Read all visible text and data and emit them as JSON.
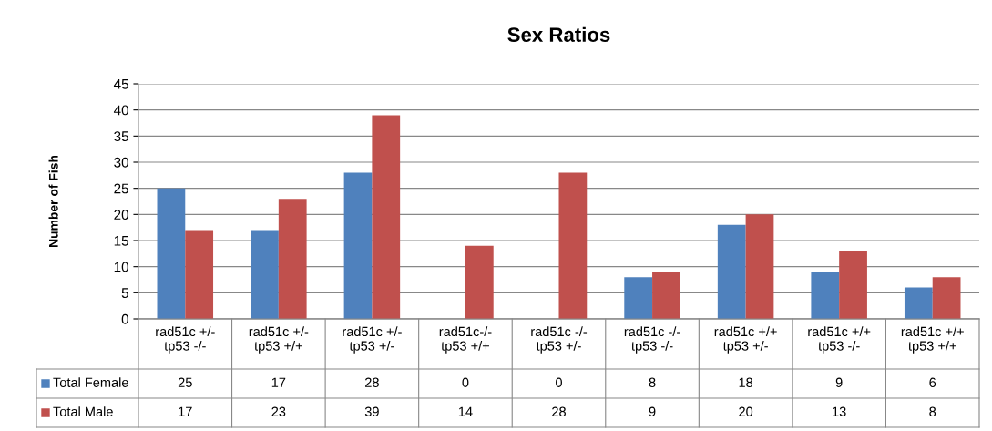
{
  "chart_data": {
    "type": "bar",
    "title": "Sex Ratios",
    "ylabel": "Number of Fish",
    "categories": [
      "rad51c +/-\ntp53 -/-",
      "rad51c +/-\ntp53 +/+",
      "rad51c +/-\ntp53 +/-",
      "rad51c-/-\ntp53 +/+",
      "rad51c -/-\ntp53 +/-",
      "rad51c -/-\ntp53 -/-",
      "rad51c +/+\ntp53 +/-",
      "rad51c +/+\ntp53 -/-",
      "rad51c +/+\ntp53 +/+"
    ],
    "series": [
      {
        "name": "Total Female",
        "color": "#4f81bd",
        "values": [
          25,
          17,
          28,
          0,
          0,
          8,
          18,
          9,
          6
        ]
      },
      {
        "name": "Total Male",
        "color": "#c0504d",
        "values": [
          17,
          23,
          39,
          14,
          28,
          9,
          20,
          13,
          8
        ]
      }
    ],
    "ylim": [
      0,
      45
    ],
    "yticks": [
      0,
      5,
      10,
      15,
      20,
      25,
      30,
      35,
      40,
      45
    ],
    "grid": "y",
    "legend": "bottom",
    "data_labels": true
  }
}
